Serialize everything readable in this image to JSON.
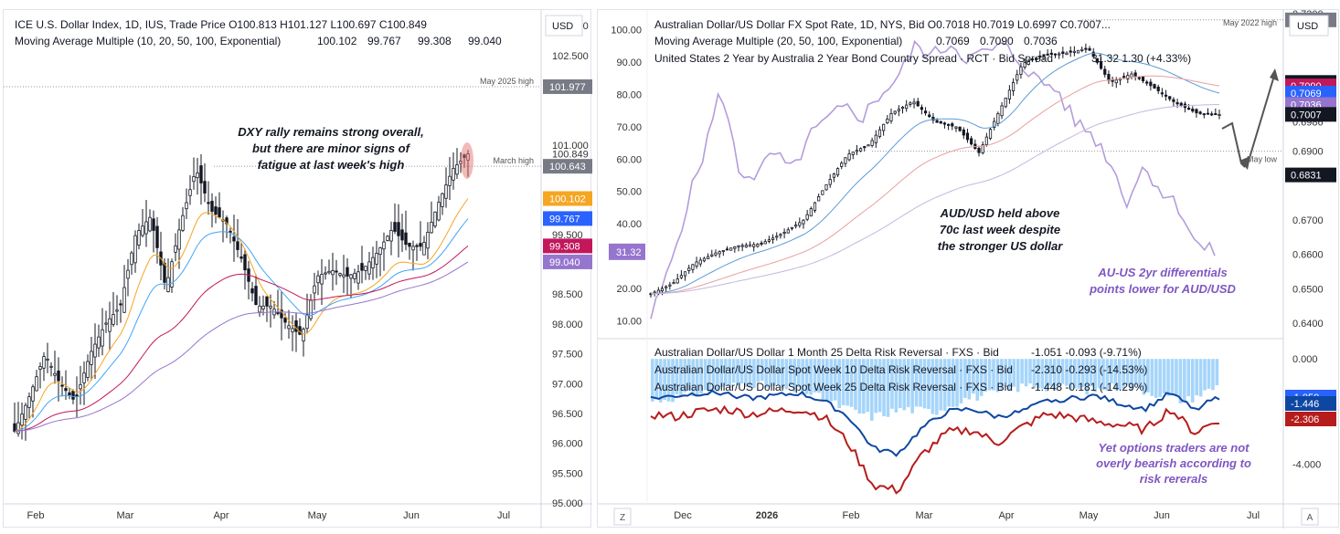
{
  "left": {
    "legend_line1": "ICE U.S. Dollar Index, 1D, IUS, Trade Price  O100.813  H101.127  L100.697  C100.849",
    "legend_line2_label": "Moving Average Multiple (10, 20, 50, 100, Exponential)",
    "ma_values": [
      "100.102",
      "99.767",
      "99.308",
      "99.040"
    ],
    "currency": "USD",
    "annotation": [
      "DXY rally remains strong overall,",
      "but there are minor signs of",
      "fatigue at last week's high"
    ],
    "ref_lines": [
      {
        "label": "May 2025 high",
        "value": 101.977
      },
      {
        "label": "March high",
        "value": 100.643
      }
    ],
    "axis_ticks": [
      "103.000",
      "102.500",
      "101.000",
      "100.849",
      "99.500",
      "99.000",
      "98.500",
      "98.000",
      "97.500",
      "97.000",
      "96.500",
      "96.000",
      "95.500",
      "95.000"
    ],
    "price_tags": [
      {
        "text": "101.977",
        "value": 101.977,
        "bg": "#787b86"
      },
      {
        "text": "100.643",
        "value": 100.643,
        "bg": "#787b86"
      },
      {
        "text": "100.102",
        "value": 100.102,
        "bg": "#f5a623"
      },
      {
        "text": "99.767",
        "value": 99.767,
        "bg": "#2962ff"
      },
      {
        "text": "99.308",
        "value": 99.308,
        "bg": "#c2185b"
      },
      {
        "text": "99.040",
        "value": 99.04,
        "bg": "#9575cd"
      }
    ],
    "x_labels": [
      "Feb",
      "Mar",
      "Apr",
      "May",
      "Jun",
      "Jul"
    ]
  },
  "right_top": {
    "legend_line1": "Australian Dollar/US Dollar FX Spot Rate, 1D, NYS, Bid  O0.7018  H0.7019  L0.6997  C0.7007...",
    "legend_line2_label": "Moving Average Multiple (20, 50, 100, Exponential)",
    "ma_values": [
      "0.7069",
      "0.7090",
      "0.7036"
    ],
    "legend_line3_label": "United States 2 Year by Australia 2 Year Bond Country Spread · RCT · Bid Spread",
    "spread_values": "31.32  1.30 (+4.33%)",
    "currency": "USD",
    "annotation_main": [
      "AUD/USD held above",
      "70c last week despite",
      "the stronger US dollar"
    ],
    "annotation_spread": [
      "AU-US 2yr differentials",
      "points lower for AUD/USD"
    ],
    "ref_lines": [
      {
        "label": "May 2022 high",
        "value": 0.7282
      },
      {
        "label": "May low",
        "value": 0.69
      }
    ],
    "left_ticks": [
      "100.00",
      "90.00",
      "80.00",
      "70.00",
      "60.00",
      "50.00",
      "40.00",
      "30.00",
      "20.00",
      "10.00"
    ],
    "spread_tag": "31.32",
    "axis_ticks": [
      "0.7300",
      "0.7000",
      "0.6986",
      "0.6900",
      "0.6700",
      "0.6600",
      "0.6500",
      "0.6400"
    ],
    "price_tags": [
      {
        "text": "0.7282",
        "value": 0.7282,
        "bg": "#787b86"
      },
      {
        "text": "0.7100",
        "value": 0.71,
        "bg": "#131722"
      },
      {
        "text": "0.7090",
        "value": 0.709,
        "bg": "#c2185b"
      },
      {
        "text": "0.7069",
        "value": 0.7069,
        "bg": "#2962ff"
      },
      {
        "text": "0.7036",
        "value": 0.7036,
        "bg": "#9575cd"
      },
      {
        "text": "0.7007",
        "value": 0.7007,
        "bg": "#131722"
      },
      {
        "text": "0.6831",
        "value": 0.6831,
        "bg": "#131722"
      }
    ]
  },
  "right_bottom": {
    "legend_line1": "Australian Dollar/US Dollar 1 Month 25 Delta Risk Reversal · FXS · Bid",
    "legend_line1_values": "-1.051  -0.093 (-9.71%)",
    "legend_line2": "Australian Dollar/US Dollar Spot Week 10 Delta Risk Reversal · FXS · Bid",
    "legend_line2_values": "-2.310  -0.293 (-14.53%)",
    "legend_line3": "Australian Dollar/US Dollar Spot Week 25 Delta Risk Reversal · FXS · Bid",
    "legend_line3_values": "-1.448  -0.181 (-14.29%)",
    "annotation": [
      "Yet options traders are not",
      "overly bearish according to",
      "risk rererals"
    ],
    "axis_ticks": [
      "0.000",
      "-4.000"
    ],
    "price_tags": [
      {
        "text": "-1.050",
        "value": -1.05,
        "bg": "#2962ff"
      },
      {
        "text": "-1.446",
        "value": -1.446,
        "bg": "#0d47a1"
      },
      {
        "text": "-2.306",
        "value": -2.306,
        "bg": "#b71c1c"
      }
    ],
    "x_labels": [
      "Dec",
      "2026",
      "Feb",
      "Mar",
      "Apr",
      "May",
      "Jun",
      "Jul"
    ]
  },
  "chart_data": [
    {
      "type": "candlestick",
      "title": "ICE U.S. Dollar Index, 1D",
      "ylim": [
        95.0,
        103.2
      ],
      "x_labels": [
        "Feb",
        "Mar",
        "Apr",
        "May",
        "Jun",
        "Jul"
      ],
      "close_path": [
        96.2,
        96.8,
        97.5,
        97.0,
        96.7,
        97.5,
        98.0,
        98.3,
        99.5,
        99.8,
        98.6,
        99.7,
        100.6,
        99.9,
        99.7,
        99.1,
        98.3,
        98.3,
        98.0,
        97.8,
        98.8,
        98.9,
        98.8,
        98.9,
        99.2,
        99.6,
        99.3,
        99.3,
        100.0,
        100.6,
        100.85
      ],
      "last": {
        "open": 100.813,
        "high": 101.127,
        "low": 100.697,
        "close": 100.849
      },
      "moving_averages": [
        {
          "name": "EMA 10",
          "value": 100.102,
          "color": "#f5a623"
        },
        {
          "name": "EMA 20",
          "value": 99.767,
          "color": "#42a5f5"
        },
        {
          "name": "EMA 50",
          "value": 99.308,
          "color": "#c2185b"
        },
        {
          "name": "EMA 100",
          "value": 99.04,
          "color": "#9575cd"
        }
      ]
    },
    {
      "type": "candlestick",
      "title": "Australian Dollar/US Dollar FX Spot Rate, 1D",
      "ylim": [
        0.636,
        0.73
      ],
      "close_path": [
        0.6485,
        0.6515,
        0.6575,
        0.6605,
        0.6625,
        0.663,
        0.666,
        0.67,
        0.68,
        0.689,
        0.692,
        0.701,
        0.7045,
        0.6985,
        0.697,
        0.6895,
        0.7025,
        0.7155,
        0.718,
        0.7185,
        0.72,
        0.71,
        0.7125,
        0.7085,
        0.704,
        0.701,
        0.7007
      ],
      "last": {
        "open": 0.7018,
        "high": 0.7019,
        "low": 0.6997,
        "close": 0.7007
      },
      "moving_averages": [
        {
          "name": "EMA 20",
          "value": 0.7069
        },
        {
          "name": "EMA 50",
          "value": 0.709
        },
        {
          "name": "EMA 100",
          "value": 0.7036
        }
      ]
    },
    {
      "type": "line",
      "title": "United States 2 Year by Australia 2 Year Bond Country Spread",
      "ylim": [
        5,
        105
      ],
      "values": [
        11,
        25,
        45,
        62,
        82,
        56,
        55,
        62,
        56,
        67,
        72,
        76,
        73,
        80,
        85,
        95,
        92,
        96,
        91,
        93,
        95,
        90,
        84,
        82,
        72,
        68,
        60,
        47,
        58,
        50,
        45,
        33,
        31.32
      ]
    },
    {
      "type": "line",
      "title": "AUD/USD Risk Reversals",
      "ylim": [
        -5.4,
        0.7
      ],
      "series": [
        {
          "name": "Australian Dollar/US Dollar 1 Month 25 Delta Risk Reversal",
          "last": -1.051
        },
        {
          "name": "Australian Dollar/US Dollar Spot Week 10 Delta Risk Reversal",
          "last": -2.31
        },
        {
          "name": "Australian Dollar/US Dollar Spot Week 25 Delta Risk Reversal",
          "last": -1.448
        }
      ]
    }
  ]
}
